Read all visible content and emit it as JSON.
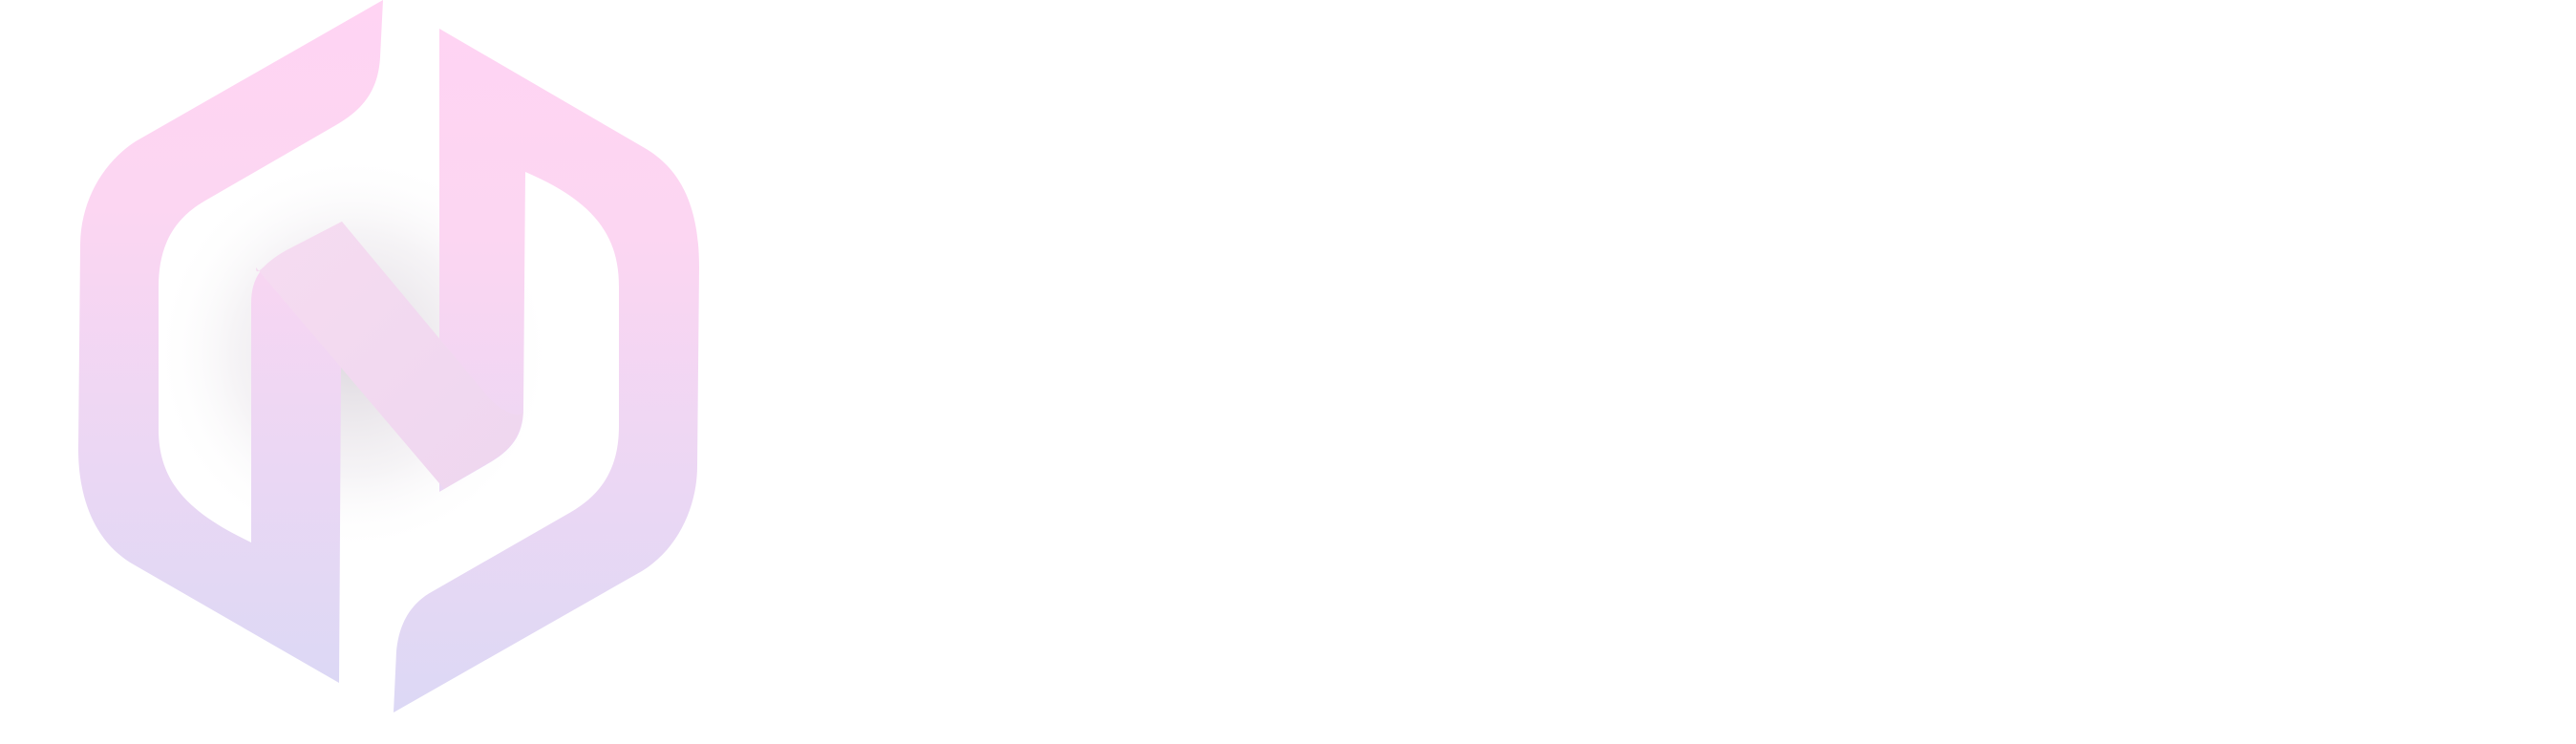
{
  "logo": {
    "icon": "hexagon-n-logo-icon",
    "gradient_top": "#FFD4F3",
    "gradient_bottom": "#DCD8F5",
    "diagonal_color": "#F2D9F0",
    "shadow_color": "#B7A9B9"
  }
}
